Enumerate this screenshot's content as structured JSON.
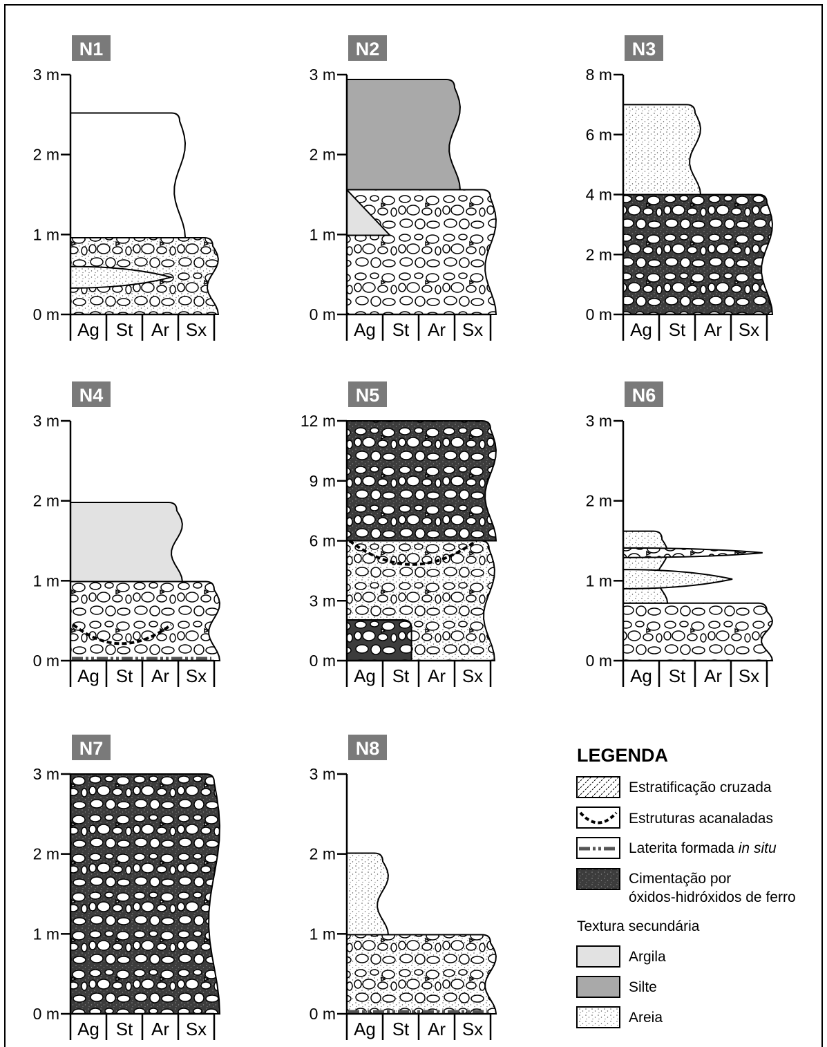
{
  "panels": [
    {
      "label": "N1",
      "ticks": [
        "3 m",
        "2 m",
        "1 m",
        "0 m"
      ]
    },
    {
      "label": "N2",
      "ticks": [
        "3 m",
        "2 m",
        "1 m",
        "0 m"
      ]
    },
    {
      "label": "N3",
      "ticks": [
        "8 m",
        "6 m",
        "4 m",
        "2 m",
        "0 m"
      ]
    },
    {
      "label": "N4",
      "ticks": [
        "3 m",
        "2 m",
        "1 m",
        "0 m"
      ]
    },
    {
      "label": "N5",
      "ticks": [
        "12 m",
        "9 m",
        "6 m",
        "3 m",
        "0 m"
      ]
    },
    {
      "label": "N6",
      "ticks": [
        "3 m",
        "2 m",
        "1 m",
        "0 m"
      ]
    },
    {
      "label": "N7",
      "ticks": [
        "3 m",
        "2 m",
        "1 m",
        "0 m"
      ]
    },
    {
      "label": "N8",
      "ticks": [
        "3 m",
        "2 m",
        "1 m",
        "0 m"
      ]
    }
  ],
  "grain_classes": [
    "Ag",
    "St",
    "Ar",
    "Sx"
  ],
  "legend": {
    "title": "LEGENDA",
    "cross_bedding": "Estratificação cruzada",
    "channels": "Estruturas acanaladas",
    "laterite": {
      "text": "Laterita formada",
      "emphasis": "in situ"
    },
    "cementation": [
      "Cimentação por",
      "óxidos-hidróxidos de ferro"
    ],
    "texture_title": "Textura secundária",
    "textures": [
      "Argila",
      "Silte",
      "Areia"
    ]
  }
}
